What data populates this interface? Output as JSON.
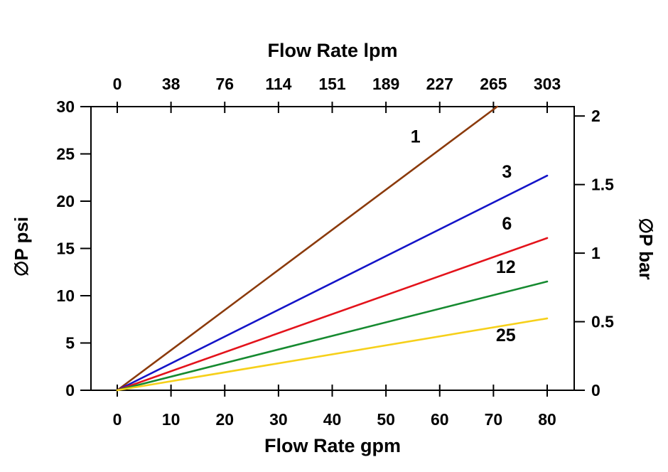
{
  "chart_data": {
    "type": "line",
    "title": "",
    "top_axis": {
      "label": "Flow Rate lpm",
      "tick_labels": [
        "0",
        "38",
        "76",
        "114",
        "151",
        "189",
        "227",
        "265",
        "303"
      ]
    },
    "bottom_axis": {
      "label": "Flow Rate gpm",
      "tick_values": [
        0,
        10,
        20,
        30,
        40,
        50,
        60,
        70,
        80
      ],
      "tick_labels": [
        "0",
        "10",
        "20",
        "30",
        "40",
        "50",
        "60",
        "70",
        "80"
      ],
      "range": [
        0,
        80
      ]
    },
    "left_axis": {
      "label": "∅P psi",
      "tick_values": [
        0,
        5,
        10,
        15,
        20,
        25,
        30
      ],
      "tick_labels": [
        "0",
        "5",
        "10",
        "15",
        "20",
        "25",
        "30"
      ],
      "range": [
        0,
        30
      ]
    },
    "right_axis": {
      "label": "∅P bar",
      "tick_values": [
        0,
        0.5,
        1,
        1.5,
        2
      ],
      "tick_labels": [
        "0",
        "0.5",
        "1",
        "1.5",
        "2"
      ],
      "psi_per_bar": 14.5038,
      "range": [
        0,
        2
      ]
    },
    "grid": false,
    "legend": "inline-labels",
    "series": [
      {
        "name": "1",
        "color": "#8B3A0B",
        "points": [
          [
            0,
            0
          ],
          [
            70.7,
            30
          ]
        ],
        "label_pos": [
          55.5,
          26.2
        ]
      },
      {
        "name": "3",
        "color": "#1414C8",
        "points": [
          [
            0,
            0
          ],
          [
            80,
            22.7
          ]
        ],
        "label_pos": [
          72.5,
          22.5
        ]
      },
      {
        "name": "6",
        "color": "#E3131B",
        "points": [
          [
            0,
            0
          ],
          [
            80,
            16.1
          ]
        ],
        "label_pos": [
          72.5,
          17.0
        ]
      },
      {
        "name": "12",
        "color": "#168A30",
        "points": [
          [
            0,
            0
          ],
          [
            80,
            11.5
          ]
        ],
        "label_pos": [
          72.3,
          12.4
        ]
      },
      {
        "name": "25",
        "color": "#F6D01A",
        "points": [
          [
            0,
            0
          ],
          [
            80,
            7.6
          ]
        ],
        "label_pos": [
          72.3,
          5.2
        ]
      }
    ]
  },
  "style": {
    "axis_color": "#000000",
    "text_color": "#000000",
    "background": "#ffffff"
  }
}
